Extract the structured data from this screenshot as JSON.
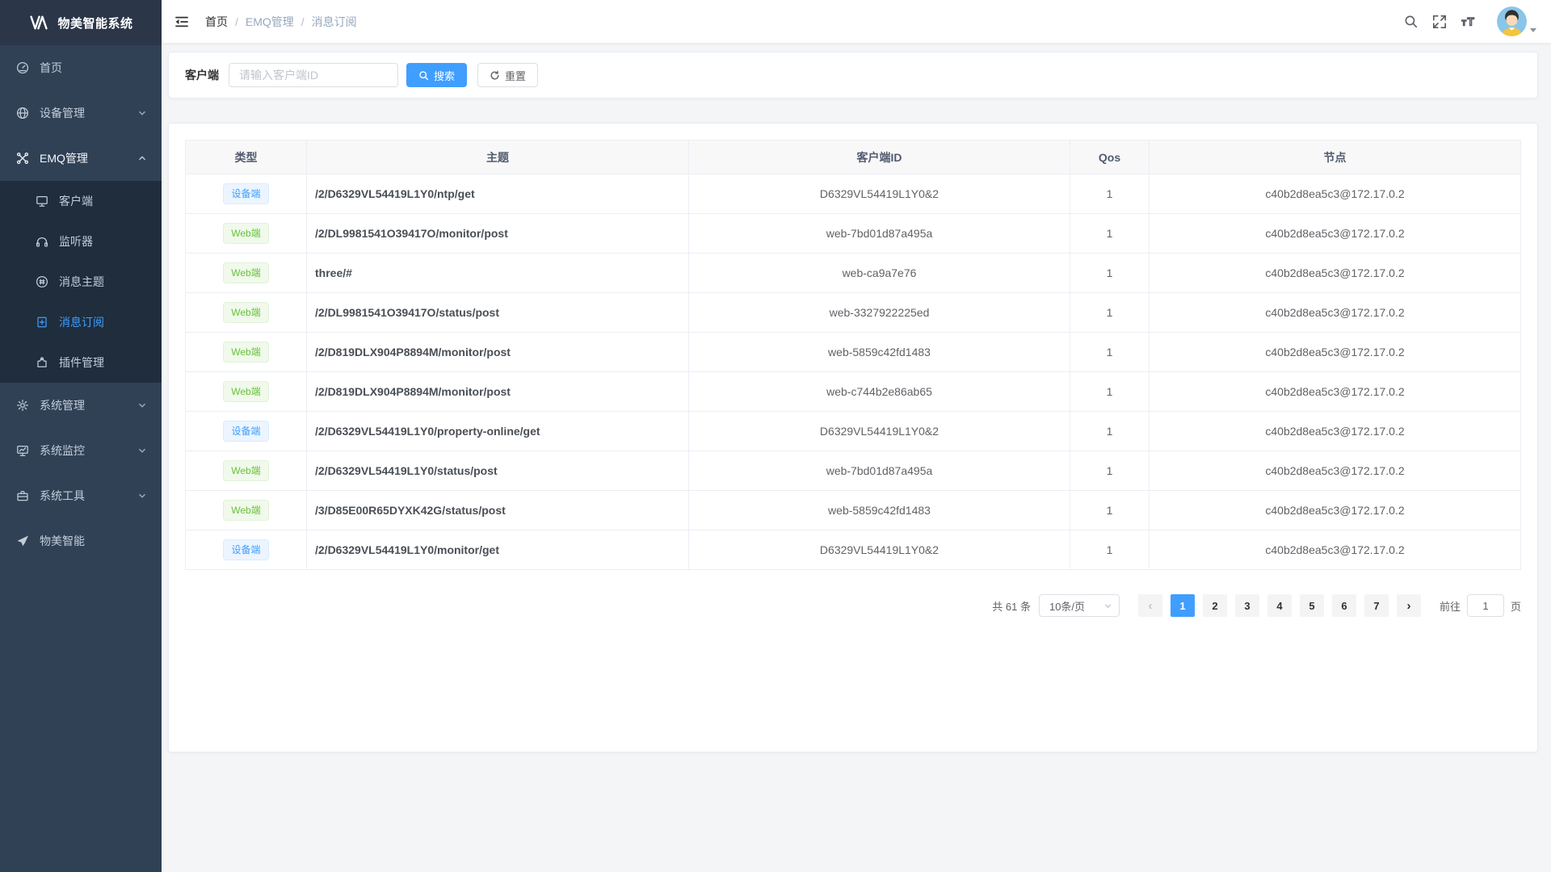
{
  "app": {
    "title": "物美智能系统"
  },
  "colors": {
    "accent": "#409eff",
    "sidebar_bg": "#304156",
    "submenu_bg": "#1f2d3d",
    "tag_blue": "#409eff",
    "tag_green": "#67c23a"
  },
  "sidebar": {
    "items": [
      {
        "name": "home",
        "label": "首页",
        "icon": "dashboard-icon"
      },
      {
        "name": "device-mgmt",
        "label": "设备管理",
        "icon": "devices-icon",
        "chevron": "down"
      },
      {
        "name": "emq-mgmt",
        "label": "EMQ管理",
        "icon": "emq-icon",
        "chevron": "up",
        "open": true,
        "children": [
          {
            "name": "emq-client",
            "label": "客户端",
            "icon": "client-monitor-icon"
          },
          {
            "name": "emq-listener",
            "label": "监听器",
            "icon": "headphones-icon"
          },
          {
            "name": "emq-topic",
            "label": "消息主题",
            "icon": "hash-circle-icon"
          },
          {
            "name": "emq-subscription",
            "label": "消息订阅",
            "icon": "bookmark-plus-icon",
            "active": true
          },
          {
            "name": "emq-plugin",
            "label": "插件管理",
            "icon": "puzzle-icon"
          }
        ]
      },
      {
        "name": "system-mgmt",
        "label": "系统管理",
        "icon": "gear-icon",
        "chevron": "down"
      },
      {
        "name": "system-monitor",
        "label": "系统监控",
        "icon": "monitor-chart-icon",
        "chevron": "down"
      },
      {
        "name": "system-tools",
        "label": "系统工具",
        "icon": "toolbox-icon",
        "chevron": "down"
      },
      {
        "name": "wumei-smart",
        "label": "物美智能",
        "icon": "paper-plane-icon"
      }
    ]
  },
  "breadcrumb": {
    "separator": "/",
    "items": [
      "首页",
      "EMQ管理",
      "消息订阅"
    ]
  },
  "search": {
    "label": "客户端",
    "placeholder": "请输入客户端ID",
    "value": "",
    "search_label": "搜索",
    "reset_label": "重置"
  },
  "table": {
    "columns": [
      "类型",
      "主题",
      "客户端ID",
      "Qos",
      "节点"
    ],
    "rows": [
      {
        "type": "设备端",
        "type_color": "blue",
        "topic": "/2/D6329VL54419L1Y0/ntp/get",
        "client_id": "D6329VL54419L1Y0&2",
        "qos": "1",
        "node": "c40b2d8ea5c3@172.17.0.2"
      },
      {
        "type": "Web端",
        "type_color": "green",
        "topic": "/2/DL9981541O39417O/monitor/post",
        "client_id": "web-7bd01d87a495a",
        "qos": "1",
        "node": "c40b2d8ea5c3@172.17.0.2"
      },
      {
        "type": "Web端",
        "type_color": "green",
        "topic": "three/#",
        "client_id": "web-ca9a7e76",
        "qos": "1",
        "node": "c40b2d8ea5c3@172.17.0.2"
      },
      {
        "type": "Web端",
        "type_color": "green",
        "topic": "/2/DL9981541O39417O/status/post",
        "client_id": "web-3327922225ed",
        "qos": "1",
        "node": "c40b2d8ea5c3@172.17.0.2"
      },
      {
        "type": "Web端",
        "type_color": "green",
        "topic": "/2/D819DLX904P8894M/monitor/post",
        "client_id": "web-5859c42fd1483",
        "qos": "1",
        "node": "c40b2d8ea5c3@172.17.0.2"
      },
      {
        "type": "Web端",
        "type_color": "green",
        "topic": "/2/D819DLX904P8894M/monitor/post",
        "client_id": "web-c744b2e86ab65",
        "qos": "1",
        "node": "c40b2d8ea5c3@172.17.0.2"
      },
      {
        "type": "设备端",
        "type_color": "blue",
        "topic": "/2/D6329VL54419L1Y0/property-online/get",
        "client_id": "D6329VL54419L1Y0&2",
        "qos": "1",
        "node": "c40b2d8ea5c3@172.17.0.2"
      },
      {
        "type": "Web端",
        "type_color": "green",
        "topic": "/2/D6329VL54419L1Y0/status/post",
        "client_id": "web-7bd01d87a495a",
        "qos": "1",
        "node": "c40b2d8ea5c3@172.17.0.2"
      },
      {
        "type": "Web端",
        "type_color": "green",
        "topic": "/3/D85E00R65DYXK42G/status/post",
        "client_id": "web-5859c42fd1483",
        "qos": "1",
        "node": "c40b2d8ea5c3@172.17.0.2"
      },
      {
        "type": "设备端",
        "type_color": "blue",
        "topic": "/2/D6329VL54419L1Y0/monitor/get",
        "client_id": "D6329VL54419L1Y0&2",
        "qos": "1",
        "node": "c40b2d8ea5c3@172.17.0.2"
      }
    ]
  },
  "pagination": {
    "total_label": "共 61 条",
    "page_size": "10条/页",
    "pages": [
      "1",
      "2",
      "3",
      "4",
      "5",
      "6",
      "7"
    ],
    "active_page": "1",
    "goto_label": "前往",
    "goto_value": "1",
    "unit_label": "页"
  }
}
